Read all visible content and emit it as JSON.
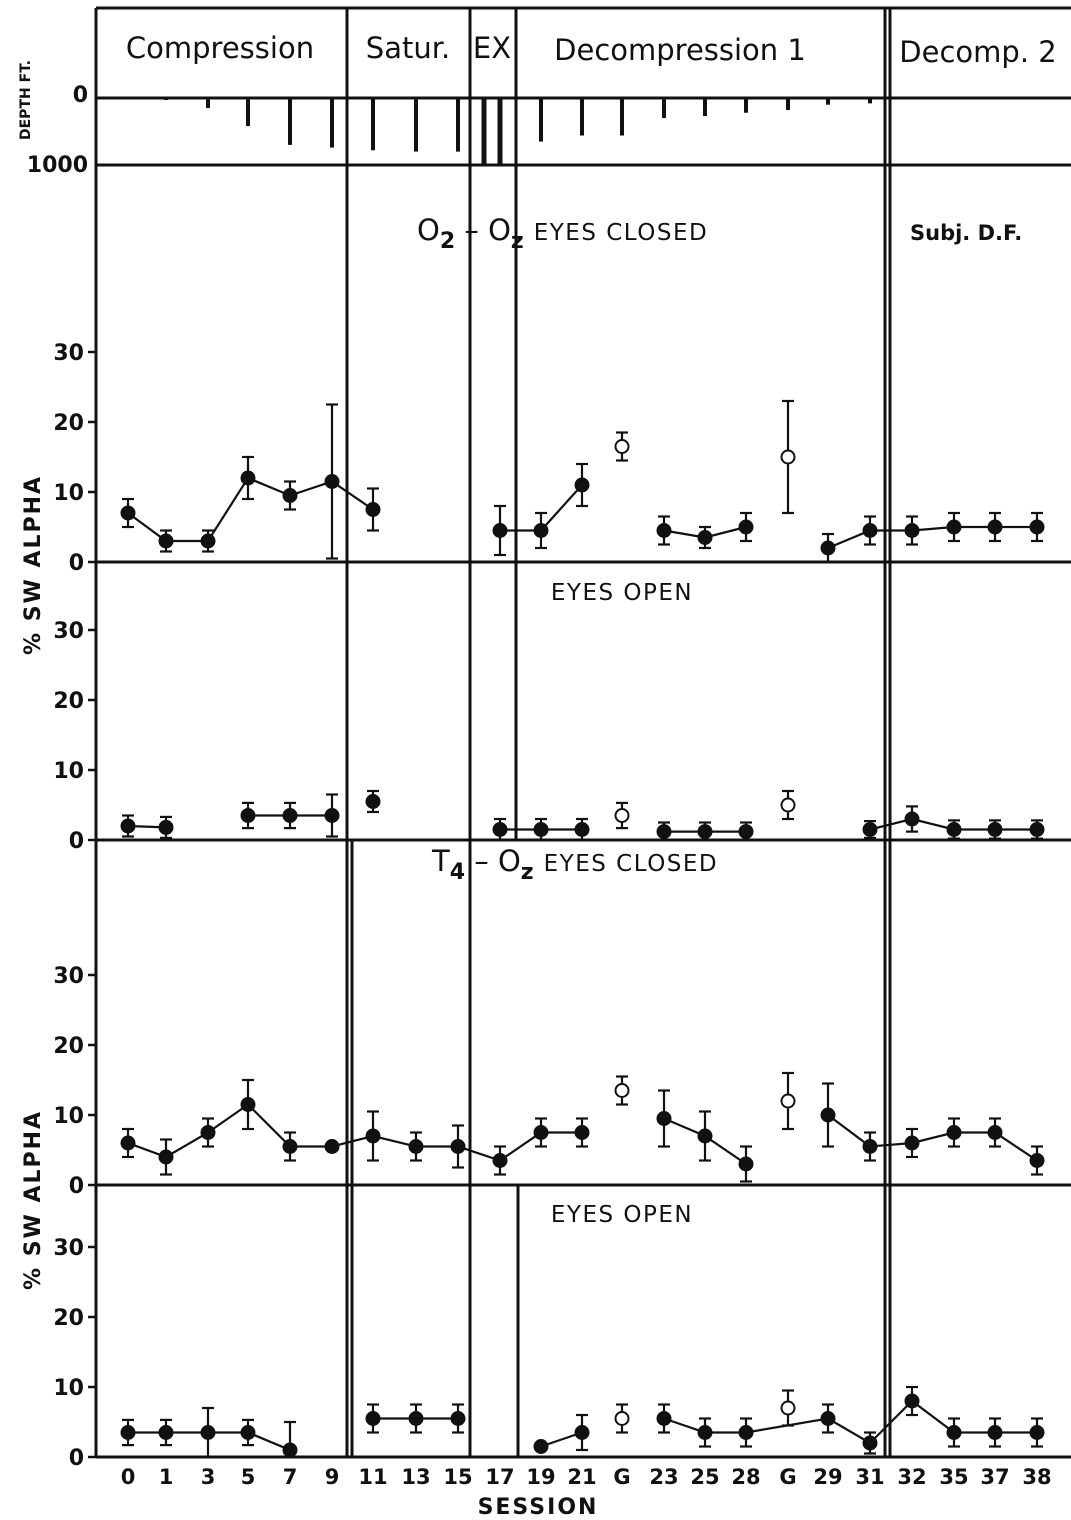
{
  "phases": [
    "Compression",
    "Satur.",
    "EX",
    "Decompression 1",
    "Decomp. 2"
  ],
  "depth_axis": {
    "title": "DEPTH FT.",
    "ticks": [
      "0",
      "1000"
    ]
  },
  "y_axis_title": "% SW ALPHA",
  "x_axis_title": "SESSION",
  "subject_label": "Subj. D.F.",
  "x_tick_labels": [
    "0",
    "1",
    "3",
    "5",
    "7",
    "9",
    "11",
    "13",
    "15",
    "17",
    "19",
    "21",
    "G",
    "23",
    "25",
    "28",
    "G",
    "29",
    "31",
    "32",
    "35",
    "37",
    "38"
  ],
  "y_tick_labels": [
    "0",
    "10",
    "20",
    "30"
  ],
  "chart_data": {
    "type": "line",
    "categories": [
      "0",
      "1",
      "3",
      "5",
      "7",
      "9",
      "11",
      "13",
      "15",
      "17",
      "19",
      "21",
      "G",
      "23",
      "25",
      "28",
      "G",
      "29",
      "31",
      "32",
      "35",
      "37",
      "38"
    ],
    "ylim": [
      0,
      40
    ],
    "ylabel": "% SW ALPHA",
    "xlabel": "SESSION",
    "depth_ft": [
      10,
      30,
      150,
      420,
      700,
      740,
      780,
      800,
      800,
      1000,
      650,
      560,
      560,
      300,
      270,
      220,
      180,
      100,
      80,
      null,
      null,
      null,
      null
    ],
    "panels": [
      {
        "lead": "O",
        "title_sub": [
          "2",
          "z"
        ],
        "title": "EYES CLOSED",
        "values": [
          7,
          3,
          3,
          12,
          9.5,
          11.5,
          7.5,
          null,
          null,
          4.5,
          4.5,
          11,
          16.5,
          4.5,
          3.5,
          5,
          15,
          2,
          4.5,
          4.5,
          5,
          5,
          5
        ],
        "err": [
          2,
          1.5,
          1.5,
          3,
          2,
          11,
          3,
          null,
          null,
          3.5,
          2.5,
          3,
          2,
          2,
          1.5,
          2,
          8,
          2,
          2,
          2,
          2,
          2,
          2
        ],
        "open_markers": [
          12,
          16
        ],
        "segments": [
          [
            0,
            6
          ],
          [
            9,
            11
          ],
          [
            13,
            15
          ],
          [
            17,
            22
          ]
        ]
      },
      {
        "title": "EYES OPEN",
        "values": [
          2,
          1.8,
          null,
          3.5,
          3.5,
          3.5,
          5.5,
          null,
          null,
          1.5,
          1.5,
          1.5,
          3.5,
          1.2,
          1.2,
          1.2,
          5,
          null,
          1.5,
          3,
          1.5,
          1.5,
          1.5
        ],
        "err": [
          1.5,
          1.5,
          null,
          1.8,
          1.8,
          3,
          1.5,
          null,
          null,
          1.5,
          1.5,
          1.5,
          1.8,
          1.3,
          1.3,
          1.3,
          2,
          null,
          1.2,
          1.8,
          1.3,
          1.3,
          1.3
        ],
        "open_markers": [
          12,
          16
        ],
        "segments": [
          [
            0,
            1
          ],
          [
            3,
            5
          ],
          [
            9,
            11
          ],
          [
            13,
            15
          ],
          [
            18,
            22
          ]
        ]
      },
      {
        "lead": "T",
        "title_sub": [
          "4",
          "z"
        ],
        "title": "EYES CLOSED",
        "values": [
          6,
          4,
          7.5,
          11.5,
          5.5,
          5.5,
          7,
          5.5,
          5.5,
          3.5,
          7.5,
          7.5,
          13.5,
          9.5,
          7,
          3,
          12,
          10,
          5.5,
          6,
          7.5,
          7.5,
          3.5
        ],
        "err": [
          2,
          2.5,
          2,
          3.5,
          2,
          0.5,
          3.5,
          2,
          3,
          2,
          2,
          2,
          2,
          4,
          3.5,
          2.5,
          4,
          4.5,
          2,
          2,
          2,
          2,
          2
        ],
        "open_markers": [
          12,
          16
        ],
        "segments": [
          [
            0,
            11
          ],
          [
            13,
            15
          ],
          [
            17,
            22
          ]
        ]
      },
      {
        "title": "EYES OPEN",
        "values": [
          3.5,
          3.5,
          3.5,
          3.5,
          1,
          null,
          5.5,
          5.5,
          5.5,
          null,
          1.5,
          3.5,
          5.5,
          5.5,
          3.5,
          3.5,
          7,
          5.5,
          2,
          8,
          3.5,
          3.5,
          3.5
        ],
        "err": [
          1.8,
          1.8,
          3.5,
          1.8,
          4,
          null,
          2,
          2,
          2,
          null,
          0.5,
          2.5,
          2,
          2,
          2,
          2,
          2.5,
          2,
          1.5,
          2,
          2,
          2,
          2
        ],
        "open_markers": [
          12,
          16
        ],
        "segments": [
          [
            0,
            4
          ],
          [
            6,
            8
          ],
          [
            10,
            11
          ],
          [
            13,
            22
          ]
        ]
      }
    ]
  }
}
